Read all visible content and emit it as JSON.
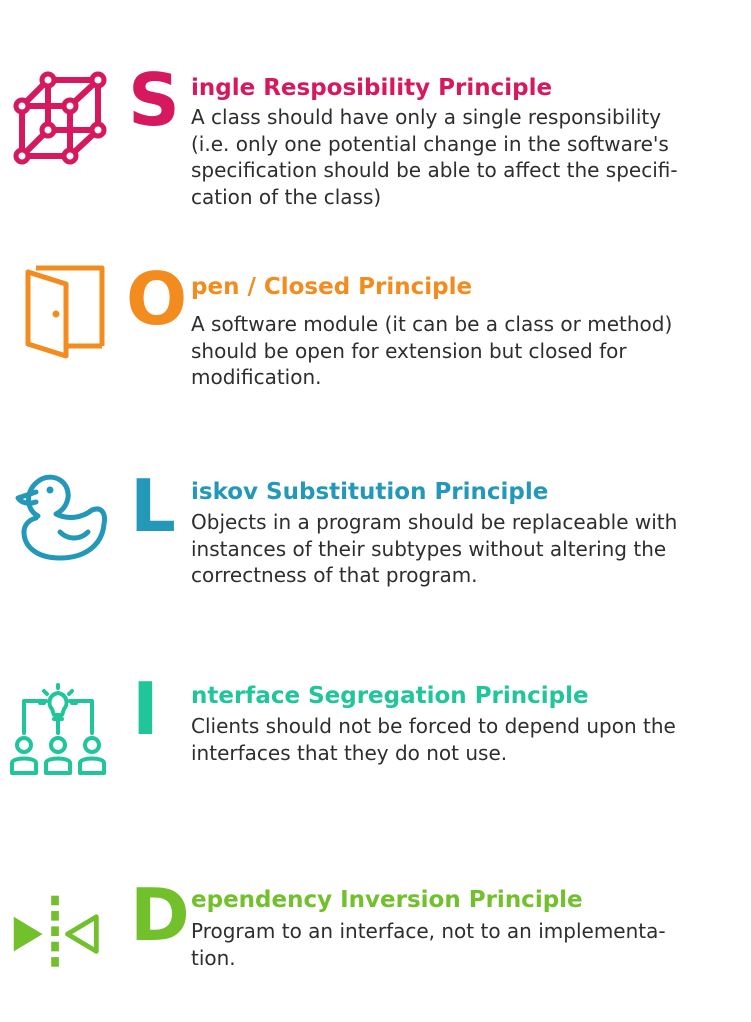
{
  "colors": {
    "s": "#d6185e",
    "o": "#f28c1e",
    "l": "#2498b8",
    "i": "#20c59a",
    "d": "#72c02c"
  },
  "principles": [
    {
      "letter": "S",
      "title": "ingle Resposibility Principle",
      "icon": "cube-network-icon",
      "lines": [
        "A class should have only a single responsibility",
        "(i.e. only one potential change in the software's",
        "specification should be able to affect the specifi-",
        "cation of the class)"
      ]
    },
    {
      "letter": "O",
      "title": "pen / Closed Principle",
      "icon": "open-door-icon",
      "lines": [
        "A software module (it can be a class or method)",
        "should be open for extension but closed for",
        "modification."
      ]
    },
    {
      "letter": "L",
      "title": "iskov Substitution Principle",
      "icon": "duck-icon",
      "lines": [
        "Objects in a program should be replaceable with",
        "instances of their subtypes without altering the",
        "correctness of that program."
      ]
    },
    {
      "letter": "I",
      "title": "nterface Segregation Principle",
      "icon": "idea-team-icon",
      "lines": [
        "Clients should not be forced to depend upon the",
        "interfaces that they do not use."
      ]
    },
    {
      "letter": "D",
      "title": "ependency Inversion Principle",
      "icon": "mirror-arrows-icon",
      "lines": [
        "Program to an interface, not to an implementa-",
        "tion."
      ]
    }
  ]
}
